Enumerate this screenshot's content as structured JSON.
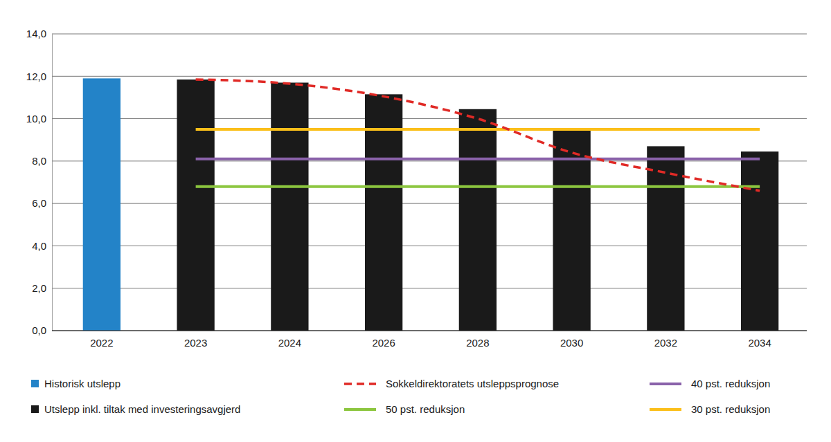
{
  "chart_data": {
    "type": "bar",
    "categories": [
      "2022",
      "2023",
      "2024",
      "2026",
      "2028",
      "2030",
      "2032",
      "2034"
    ],
    "series": [
      {
        "name": "Historisk utslepp",
        "type": "bar",
        "color": "#2383c8",
        "values": [
          11.9,
          null,
          null,
          null,
          null,
          null,
          null,
          null
        ]
      },
      {
        "name": "Utslepp inkl. tiltak med investeringsavgjerd",
        "type": "bar",
        "color": "#1a1a1a",
        "values": [
          null,
          11.85,
          11.7,
          11.15,
          10.45,
          9.5,
          8.7,
          8.45
        ]
      },
      {
        "name": "Sokkeldirektoratets utsleppsprognose",
        "type": "line",
        "color": "#e02a26",
        "line_style": "dashed",
        "values": [
          null,
          11.85,
          11.65,
          11.05,
          10.0,
          8.4,
          7.45,
          6.6
        ]
      },
      {
        "name": "50 pst. reduksjon",
        "type": "line",
        "color": "#8cc63f",
        "line_style": "solid",
        "values": [
          null,
          6.8,
          6.8,
          6.8,
          6.8,
          6.8,
          6.8,
          6.8
        ]
      },
      {
        "name": "40 pst. reduksjon",
        "type": "line",
        "color": "#8a62aa",
        "line_style": "solid",
        "values": [
          null,
          8.1,
          8.1,
          8.1,
          8.1,
          8.1,
          8.1,
          8.1
        ]
      },
      {
        "name": "30 pst. reduksjon",
        "type": "line",
        "color": "#fbbf1a",
        "line_style": "solid",
        "values": [
          null,
          9.5,
          9.5,
          9.5,
          9.5,
          9.5,
          9.5,
          9.5
        ]
      }
    ],
    "ylim": [
      0,
      14
    ],
    "yticks": [
      {
        "value": 0,
        "label": "0,0"
      },
      {
        "value": 2,
        "label": "2,0"
      },
      {
        "value": 4,
        "label": "4,0"
      },
      {
        "value": 6,
        "label": "6,0"
      },
      {
        "value": 8,
        "label": "8,0"
      },
      {
        "value": 10,
        "label": "10,0"
      },
      {
        "value": 12,
        "label": "12,0"
      },
      {
        "value": 14,
        "label": "14,0"
      }
    ],
    "grid": true
  }
}
